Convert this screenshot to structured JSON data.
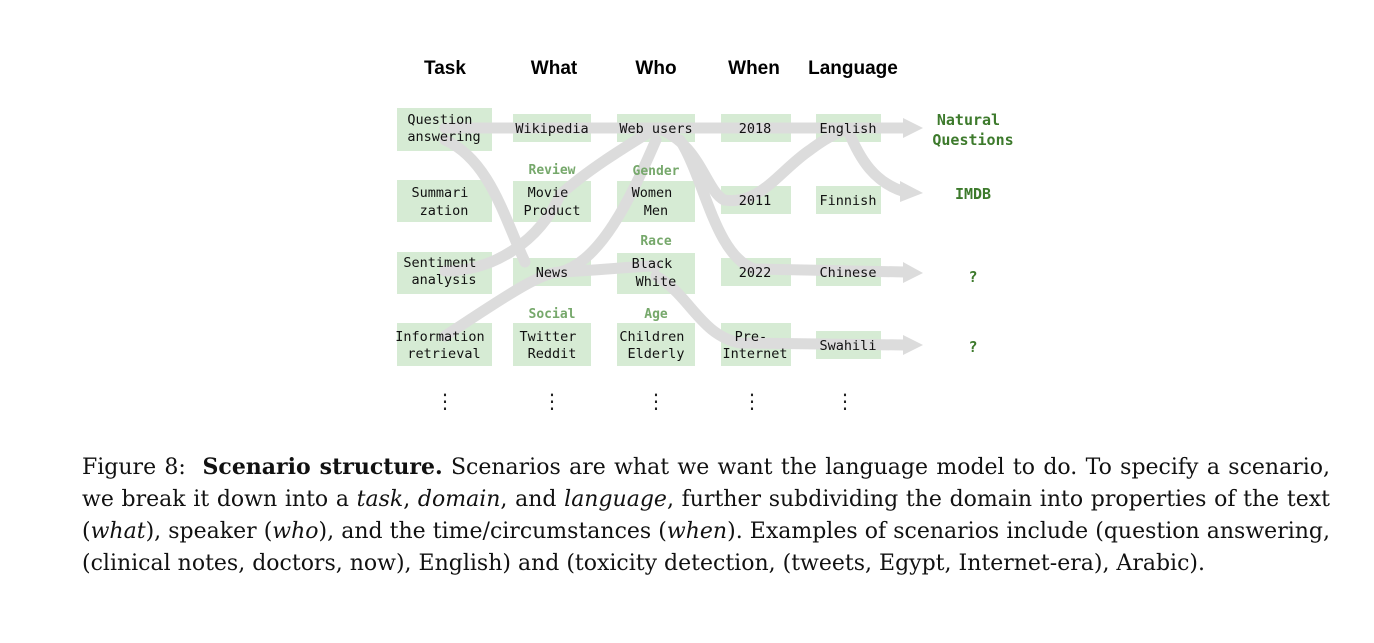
{
  "figure": {
    "headers": [
      "Task",
      "What",
      "Who",
      "When",
      "Language"
    ],
    "task": {
      "qa": [
        "Question",
        "answering"
      ],
      "sum": [
        "Summari",
        "zation"
      ],
      "sent": [
        "Sentiment",
        "analysis"
      ],
      "ir": [
        "Information",
        "retrieval"
      ]
    },
    "what": {
      "wikipedia": "Wikipedia",
      "review_label": "Review",
      "review": [
        "Movie",
        "Product"
      ],
      "news": "News",
      "social_label": "Social",
      "social": [
        "Twitter",
        "Reddit"
      ]
    },
    "who": {
      "web": "Web users",
      "gender_label": "Gender",
      "gender": [
        "Women",
        "Men"
      ],
      "race_label": "Race",
      "race": [
        "Black",
        "White"
      ],
      "age_label": "Age",
      "age": [
        "Children",
        "Elderly"
      ]
    },
    "when": {
      "y2018": "2018",
      "y2011": "2011",
      "y2022": "2022",
      "pre": [
        "Pre-",
        "Internet"
      ]
    },
    "language": {
      "english": "English",
      "finnish": "Finnish",
      "chinese": "Chinese",
      "swahili": "Swahili"
    },
    "outputs": {
      "nq": [
        "Natural",
        "Questions"
      ],
      "imdb": "IMDB",
      "q1": "?",
      "q2": "?"
    },
    "ellipsis": "⋮"
  },
  "caption": {
    "prefix": "Figure 8:",
    "title": "Scenario structure.",
    "s1": " Scenarios are what we want the language model to do. To specify a scenario, we break it down into a ",
    "task": "task",
    "c1": ", ",
    "domain": "domain",
    "c2": ", and ",
    "language": "language",
    "s2": ", further subdividing the domain into properties of the text (",
    "what": "what",
    "s3": "), speaker (",
    "who": "who",
    "s4": "), and the time/circumstances (",
    "when": "when",
    "s5": "). Examples of scenarios include (question answering, (clinical notes, doctors, now), English) and (toxicity detection, (tweets, Egypt, Internet-era), Arabic)."
  }
}
